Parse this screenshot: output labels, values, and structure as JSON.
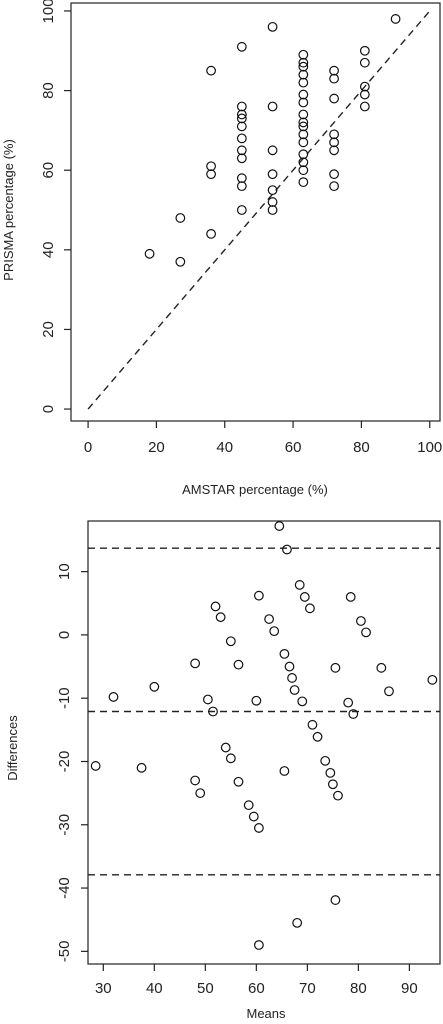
{
  "chart_data": [
    {
      "type": "scatter",
      "title": "",
      "xlabel": "AMSTAR percentage (%)",
      "ylabel": "PRISMA percentage (%)",
      "xlim": [
        -5,
        103
      ],
      "ylim": [
        -3,
        102
      ],
      "x_ticks": [
        "0",
        "20",
        "40",
        "60",
        "80",
        "100"
      ],
      "y_ticks": [
        "0",
        "20",
        "40",
        "60",
        "80",
        "100"
      ],
      "reference_line": {
        "style": "dashed",
        "description": "y = x",
        "from": [
          0,
          0
        ],
        "to": [
          100,
          100
        ]
      },
      "points": [
        [
          18,
          39
        ],
        [
          27,
          37
        ],
        [
          27,
          48
        ],
        [
          36,
          44
        ],
        [
          36,
          59
        ],
        [
          36,
          61
        ],
        [
          36,
          85
        ],
        [
          45,
          50
        ],
        [
          45,
          56
        ],
        [
          45,
          58
        ],
        [
          45,
          63
        ],
        [
          45,
          65
        ],
        [
          45,
          68
        ],
        [
          45,
          71
        ],
        [
          45,
          73
        ],
        [
          45,
          74
        ],
        [
          45,
          76
        ],
        [
          45,
          91
        ],
        [
          54,
          50
        ],
        [
          54,
          52
        ],
        [
          54,
          55
        ],
        [
          54,
          59
        ],
        [
          54,
          65
        ],
        [
          54,
          76
        ],
        [
          54,
          96
        ],
        [
          63,
          57
        ],
        [
          63,
          60
        ],
        [
          63,
          62
        ],
        [
          63,
          64
        ],
        [
          63,
          67
        ],
        [
          63,
          69
        ],
        [
          63,
          71
        ],
        [
          63,
          72
        ],
        [
          63,
          74
        ],
        [
          63,
          77
        ],
        [
          63,
          79
        ],
        [
          63,
          82
        ],
        [
          63,
          84
        ],
        [
          63,
          86
        ],
        [
          63,
          87
        ],
        [
          63,
          89
        ],
        [
          72,
          56
        ],
        [
          72,
          59
        ],
        [
          72,
          65
        ],
        [
          72,
          67
        ],
        [
          72,
          69
        ],
        [
          72,
          78
        ],
        [
          72,
          83
        ],
        [
          72,
          85
        ],
        [
          81,
          76
        ],
        [
          81,
          79
        ],
        [
          81,
          81
        ],
        [
          81,
          87
        ],
        [
          81,
          90
        ],
        [
          90,
          98
        ]
      ]
    },
    {
      "type": "scatter",
      "title": "",
      "xlabel": "Means",
      "ylabel": "Differences",
      "xlim": [
        27,
        96
      ],
      "ylim": [
        -52,
        18
      ],
      "x_ticks": [
        "30",
        "40",
        "50",
        "60",
        "70",
        "80",
        "90"
      ],
      "y_ticks": [
        "10",
        "0",
        "-10",
        "-20",
        "-30",
        "-40",
        "-50"
      ],
      "reference_lines": [
        {
          "style": "dashed",
          "y": 13.7
        },
        {
          "style": "dashed",
          "y": -12.1
        },
        {
          "style": "dashed",
          "y": -37.9
        }
      ],
      "points": [
        [
          28.5,
          -20.7
        ],
        [
          32,
          -9.8
        ],
        [
          37.5,
          -21
        ],
        [
          40,
          -8.2
        ],
        [
          48,
          -4.5
        ],
        [
          48,
          -23
        ],
        [
          49,
          -25
        ],
        [
          50.5,
          -10.2
        ],
        [
          51.5,
          -12.1
        ],
        [
          52,
          4.5
        ],
        [
          53,
          2.8
        ],
        [
          54,
          -17.8
        ],
        [
          55,
          -19.5
        ],
        [
          55,
          -1
        ],
        [
          56.5,
          -4.7
        ],
        [
          56.5,
          -23.2
        ],
        [
          58.5,
          -26.9
        ],
        [
          59.5,
          -28.7
        ],
        [
          60,
          -10.4
        ],
        [
          60.5,
          6.2
        ],
        [
          60.5,
          -30.5
        ],
        [
          60.5,
          -49
        ],
        [
          62.5,
          2.5
        ],
        [
          63.5,
          0.6
        ],
        [
          64.5,
          17.2
        ],
        [
          65.5,
          -3
        ],
        [
          65.5,
          -21.5
        ],
        [
          66,
          13.5
        ],
        [
          66.5,
          -5
        ],
        [
          67,
          -6.8
        ],
        [
          67.5,
          -8.7
        ],
        [
          68.5,
          7.9
        ],
        [
          69,
          -10.5
        ],
        [
          69.5,
          6
        ],
        [
          70.5,
          4.2
        ],
        [
          71,
          -14.2
        ],
        [
          72,
          -16.1
        ],
        [
          73.5,
          -19.9
        ],
        [
          74.5,
          -21.8
        ],
        [
          75,
          -23.6
        ],
        [
          75.5,
          -5.2
        ],
        [
          75.5,
          -41.9
        ],
        [
          76,
          -25.4
        ],
        [
          68,
          -45.5
        ],
        [
          78,
          -10.7
        ],
        [
          78.5,
          6
        ],
        [
          79,
          -12.5
        ],
        [
          80.5,
          2.2
        ],
        [
          81.5,
          0.4
        ],
        [
          84.5,
          -5.2
        ],
        [
          86,
          -8.9
        ],
        [
          94.5,
          -7.1
        ]
      ]
    }
  ]
}
